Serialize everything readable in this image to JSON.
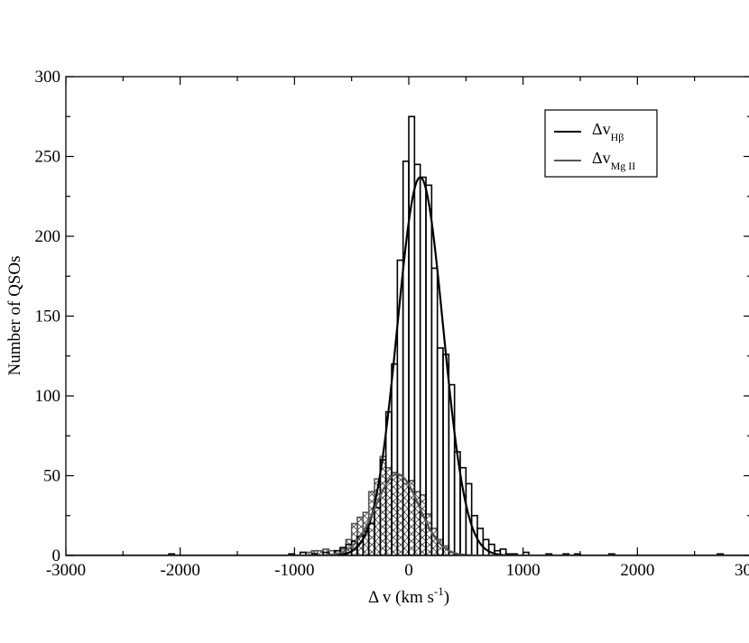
{
  "chart_data": {
    "type": "histogram",
    "xlabel": {
      "main": "Δ v (km s",
      "sup": "-1",
      "close": ")"
    },
    "ylabel": "Number of QSOs",
    "xlim": [
      -3000,
      3000
    ],
    "ylim": [
      0,
      300
    ],
    "x_ticks": [
      -3000,
      -2000,
      -1000,
      0,
      1000,
      2000,
      3000
    ],
    "x_tick_labels": [
      "-3000",
      "-2000",
      "-1000",
      "0",
      "1000",
      "2000",
      "3000"
    ],
    "y_ticks": [
      0,
      50,
      100,
      150,
      200,
      250,
      300
    ],
    "y_tick_labels": [
      "0",
      "50",
      "100",
      "150",
      "200",
      "250",
      "300"
    ],
    "bin_width": 50,
    "legend": {
      "position": "top-right",
      "entries": [
        {
          "main": "Δv",
          "sub": "Hβ",
          "color": "#000000"
        },
        {
          "main": "Δv",
          "sub": "Mg II",
          "color": "#555555"
        }
      ]
    },
    "series": [
      {
        "name": "Δv Hβ",
        "color": "#000000",
        "bins": [
          [
            -2100,
            1
          ],
          [
            -1050,
            1
          ],
          [
            -950,
            2
          ],
          [
            -850,
            1
          ],
          [
            -750,
            2
          ],
          [
            -650,
            3
          ],
          [
            -600,
            5
          ],
          [
            -550,
            7
          ],
          [
            -500,
            9
          ],
          [
            -450,
            12
          ],
          [
            -400,
            15
          ],
          [
            -350,
            20
          ],
          [
            -300,
            30
          ],
          [
            -250,
            60
          ],
          [
            -200,
            90
          ],
          [
            -150,
            120
          ],
          [
            -100,
            185
          ],
          [
            -50,
            247
          ],
          [
            0,
            275
          ],
          [
            50,
            245
          ],
          [
            100,
            237
          ],
          [
            150,
            232
          ],
          [
            200,
            180
          ],
          [
            250,
            130
          ],
          [
            300,
            126
          ],
          [
            350,
            107
          ],
          [
            400,
            65
          ],
          [
            450,
            55
          ],
          [
            500,
            45
          ],
          [
            550,
            25
          ],
          [
            600,
            17
          ],
          [
            650,
            10
          ],
          [
            700,
            7
          ],
          [
            750,
            3
          ],
          [
            800,
            4
          ],
          [
            850,
            1
          ],
          [
            900,
            1
          ],
          [
            1000,
            2
          ],
          [
            1200,
            1
          ],
          [
            1350,
            1
          ],
          [
            1450,
            1
          ],
          [
            1750,
            1
          ],
          [
            2700,
            1
          ]
        ],
        "fit": {
          "type": "gaussian",
          "amplitude": 237,
          "mean": 100,
          "sigma": 200
        }
      },
      {
        "name": "Δv Mg II",
        "color": "#555555",
        "fill": "crosshatch",
        "bins": [
          [
            -900,
            2
          ],
          [
            -850,
            3
          ],
          [
            -800,
            3
          ],
          [
            -750,
            4
          ],
          [
            -700,
            3
          ],
          [
            -650,
            3
          ],
          [
            -600,
            4
          ],
          [
            -550,
            10
          ],
          [
            -500,
            20
          ],
          [
            -450,
            24
          ],
          [
            -400,
            27
          ],
          [
            -350,
            40
          ],
          [
            -300,
            48
          ],
          [
            -250,
            62
          ],
          [
            -200,
            55
          ],
          [
            -150,
            52
          ],
          [
            -100,
            50
          ],
          [
            -50,
            45
          ],
          [
            0,
            47
          ],
          [
            50,
            40
          ],
          [
            100,
            38
          ],
          [
            150,
            26
          ],
          [
            200,
            17
          ],
          [
            250,
            10
          ],
          [
            300,
            6
          ],
          [
            350,
            2
          ],
          [
            400,
            1
          ]
        ],
        "fit": {
          "type": "gaussian",
          "amplitude": 51,
          "mean": -100,
          "sigma": 190
        }
      }
    ]
  }
}
